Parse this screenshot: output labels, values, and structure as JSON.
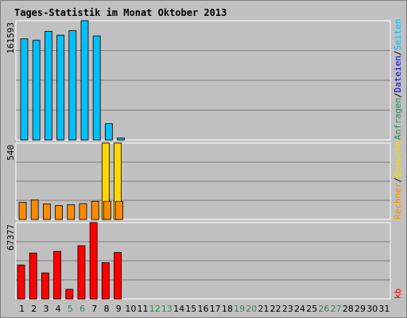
{
  "colors": {
    "background": "#c0c0c0",
    "frame": "#ffffff",
    "title": "#00008b",
    "grid": "#808080",
    "weekday": "#000000",
    "weekend": "#2e8b57",
    "anfragen": "#2e8b57",
    "dateien": "#0000cd",
    "seiten": "#00bfff",
    "besuche": "#ffd700",
    "rechner": "#ff8c00",
    "kb": "#ff0000"
  },
  "chart_data": {
    "type": "bar",
    "title": "Tages-Statistik im Monat Oktober 2013",
    "categories": [
      "1",
      "2",
      "3",
      "4",
      "5",
      "6",
      "7",
      "8",
      "9",
      "10",
      "11",
      "12",
      "13",
      "14",
      "15",
      "16",
      "17",
      "18",
      "19",
      "20",
      "21",
      "22",
      "23",
      "24",
      "25",
      "26",
      "27",
      "28",
      "29",
      "30",
      "31"
    ],
    "weekend_days": [
      "5",
      "6",
      "12",
      "13",
      "19",
      "20",
      "26",
      "27"
    ],
    "legend": {
      "top": [
        "Anfragen",
        "/",
        "Dateien",
        "/",
        "Seiten"
      ],
      "middle": [
        "Rechner",
        "/",
        "Besuche"
      ],
      "bottom": [
        "kb"
      ]
    },
    "panels": [
      {
        "id": "top",
        "ymax_label": "161593",
        "ylim": [
          0,
          161593
        ],
        "series": [
          {
            "name": "Anfragen",
            "color": "#2e8b57",
            "values": [
              0,
              0,
              0,
              0,
              0,
              0,
              0,
              0,
              0,
              0,
              0,
              0,
              0,
              0,
              0,
              0,
              0,
              0,
              0,
              0,
              0,
              0,
              0,
              0,
              0,
              0,
              0,
              0,
              0,
              0,
              0
            ]
          },
          {
            "name": "Dateien",
            "color": "#0000cd",
            "values": [
              0,
              0,
              0,
              0,
              0,
              0,
              0,
              0,
              0,
              0,
              0,
              0,
              0,
              0,
              0,
              0,
              0,
              0,
              0,
              0,
              0,
              0,
              0,
              0,
              0,
              0,
              0,
              0,
              0,
              0,
              0
            ]
          },
          {
            "name": "Seiten",
            "color": "#00bfff",
            "values": [
              137000,
              135000,
              147000,
              142000,
              148000,
              161593,
              141000,
              22000,
              2500,
              0,
              0,
              0,
              0,
              0,
              0,
              0,
              0,
              0,
              0,
              0,
              0,
              0,
              0,
              0,
              0,
              0,
              0,
              0,
              0,
              0,
              0
            ]
          }
        ]
      },
      {
        "id": "middle",
        "ymax_label": "540",
        "ylim": [
          0,
          540
        ],
        "series": [
          {
            "name": "Besuche",
            "color": "#ffd700",
            "values": [
              0,
              0,
              0,
              0,
              0,
              0,
              0,
              540,
              540,
              0,
              0,
              0,
              0,
              0,
              0,
              0,
              0,
              0,
              0,
              0,
              0,
              0,
              0,
              0,
              0,
              0,
              0,
              0,
              0,
              0,
              0
            ]
          },
          {
            "name": "Rechner",
            "color": "#ff8c00",
            "values": [
              120,
              138,
              110,
              98,
              104,
              112,
              128,
              128,
              128,
              0,
              0,
              0,
              0,
              0,
              0,
              0,
              0,
              0,
              0,
              0,
              0,
              0,
              0,
              0,
              0,
              0,
              0,
              0,
              0,
              0,
              0
            ]
          }
        ]
      },
      {
        "id": "bottom",
        "ymax_label": "67377",
        "ylim": [
          0,
          67377
        ],
        "series": [
          {
            "name": "kb",
            "color": "#ff0000",
            "values": [
              30000,
              40500,
              23000,
              42000,
              8500,
              47000,
              67377,
              32000,
              41000,
              0,
              0,
              0,
              0,
              0,
              0,
              0,
              0,
              0,
              0,
              0,
              0,
              0,
              0,
              0,
              0,
              0,
              0,
              0,
              0,
              0,
              0
            ]
          }
        ]
      }
    ],
    "grid": true
  }
}
